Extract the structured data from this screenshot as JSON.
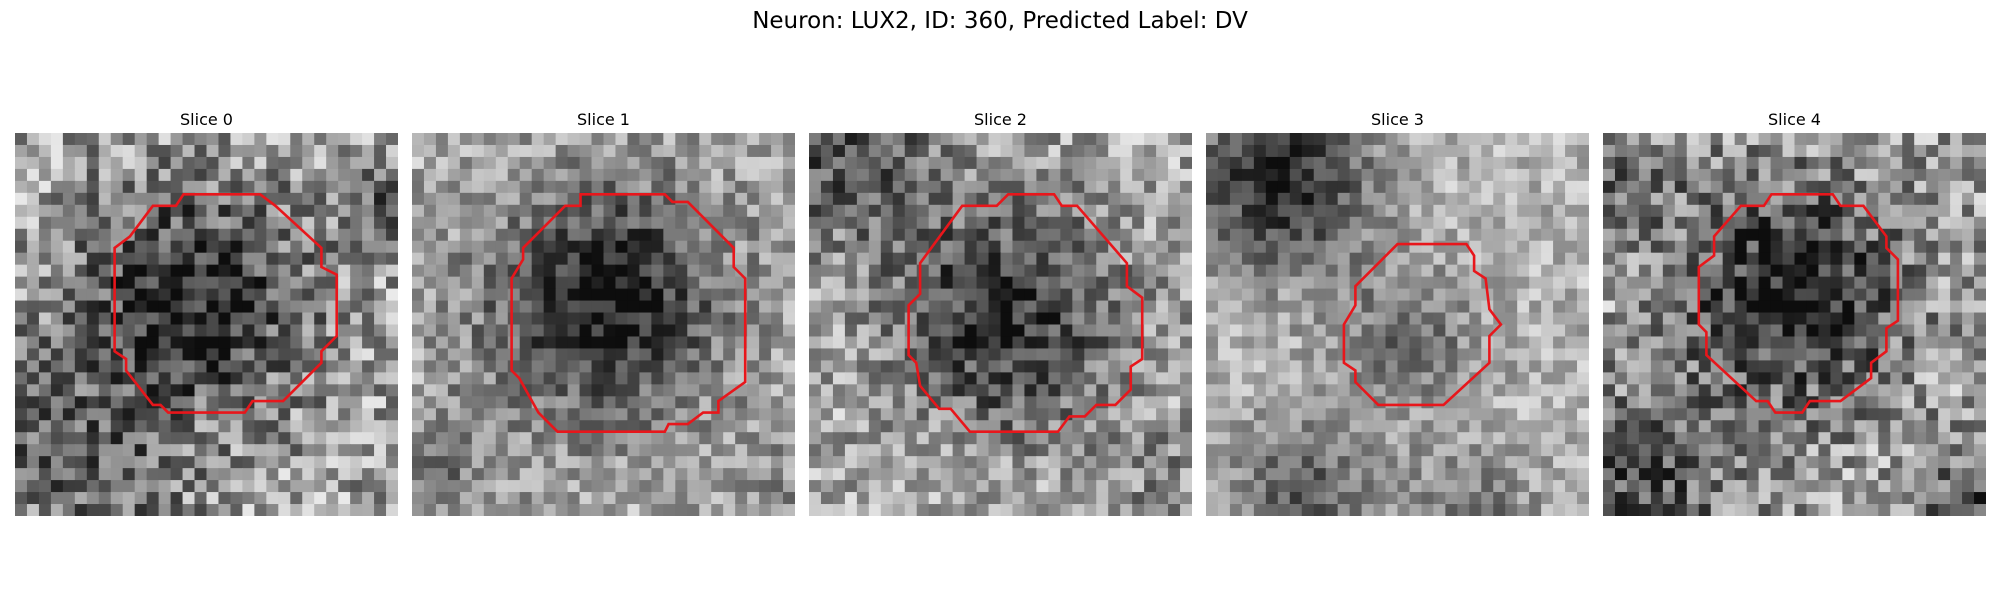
{
  "figure": {
    "title": "Neuron: LUX2, ID: 360, Predicted Label: DV",
    "outline_color": "#e8161b",
    "colormap": "gray"
  },
  "panels": [
    {
      "title": "Slice 0"
    },
    {
      "title": "Slice 1"
    },
    {
      "title": "Slice 2"
    },
    {
      "title": "Slice 3"
    },
    {
      "title": "Slice 4"
    }
  ]
}
